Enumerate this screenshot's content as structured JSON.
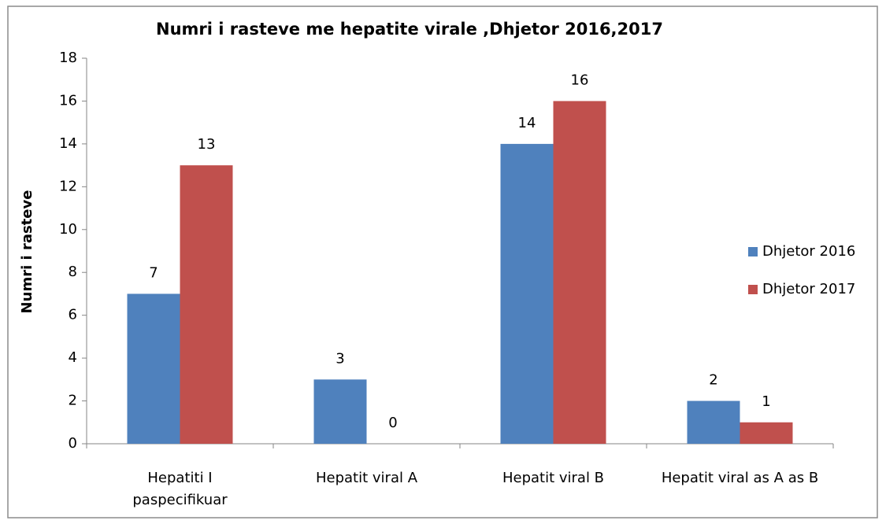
{
  "chart_data": {
    "type": "bar",
    "title": "Numri i rasteve me hepatite virale ,Dhjetor 2016,2017",
    "y_label": "Numri i rasteve",
    "categories": [
      "Hepatiti  I\npaspecifikuar",
      "Hepatit viral A",
      "Hepatit viral B",
      "Hepatit viral as A as B"
    ],
    "series": [
      {
        "name": "Dhjetor 2016",
        "color": "#4f81bd",
        "values": [
          7,
          3,
          14,
          2
        ]
      },
      {
        "name": "Dhjetor 2017",
        "color": "#c0504d",
        "values": [
          13,
          0,
          16,
          1
        ]
      }
    ],
    "ylim": [
      0,
      18
    ],
    "yticks": [
      0,
      2,
      4,
      6,
      8,
      10,
      12,
      14,
      16,
      18
    ],
    "legend": "right",
    "grid": false
  }
}
